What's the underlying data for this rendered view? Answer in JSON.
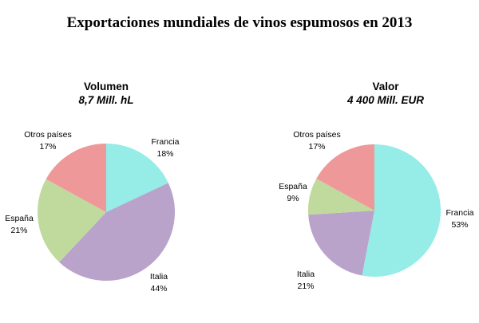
{
  "title": "Exportaciones mundiales de vinos espumosos en 2013",
  "colors": {
    "Francia": "#96ece6",
    "Italia": "#b9a3cb",
    "España": "#c0da9e",
    "Otros países": "#ee9899"
  },
  "chart_data": [
    {
      "type": "pie",
      "title": "Volumen",
      "subtitle": "8,7 Mill. hL",
      "slices": [
        {
          "label": "Francia",
          "value": 18,
          "value_label": "18%"
        },
        {
          "label": "Italia",
          "value": 44,
          "value_label": "44%"
        },
        {
          "label": "España",
          "value": 21,
          "value_label": "21%"
        },
        {
          "label": "Otros países",
          "value": 17,
          "value_label": "17%"
        }
      ]
    },
    {
      "type": "pie",
      "title": "Valor",
      "subtitle": "4 400 Mill. EUR",
      "slices": [
        {
          "label": "Francia",
          "value": 53,
          "value_label": "53%"
        },
        {
          "label": "Italia",
          "value": 21,
          "value_label": "21%"
        },
        {
          "label": "España",
          "value": 9,
          "value_label": "9%"
        },
        {
          "label": "Otros países",
          "value": 17,
          "value_label": "17%"
        }
      ]
    }
  ]
}
